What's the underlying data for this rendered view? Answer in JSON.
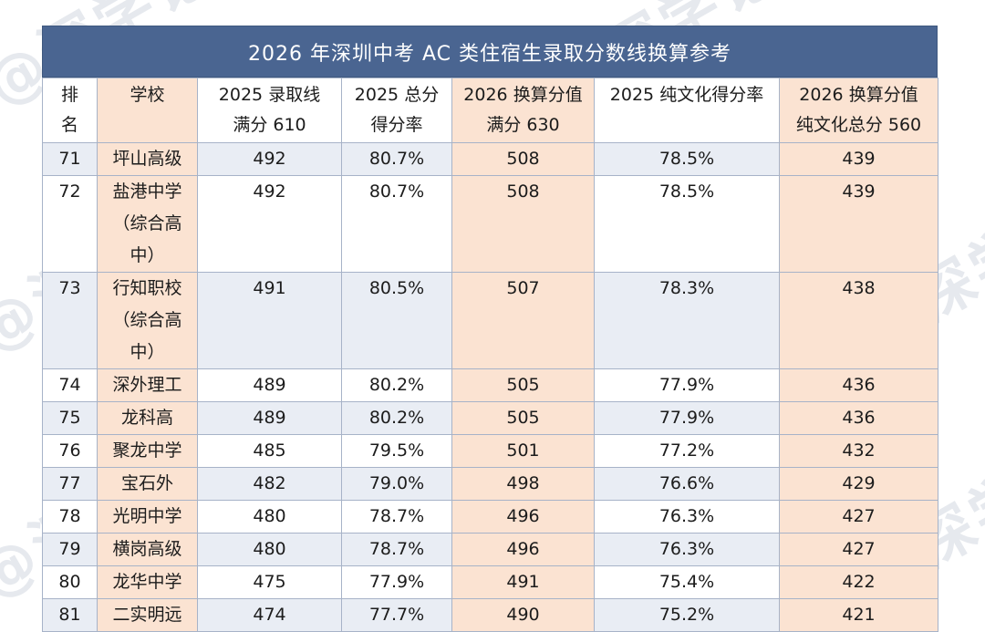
{
  "watermark": "@深学记",
  "title": "2026 年深圳中考 AC 类住宿生录取分数线换算参考",
  "headers": {
    "rank": "排\n名",
    "school": "学校",
    "score2025": "2025 录取线\n满分 610",
    "rate2025": "2025 总分\n得分率",
    "score2026": "2026 换算分值\n满分 630",
    "culture_rate2025": "2025 纯文化得分率",
    "culture2026": "2026 换算分值\n纯文化总分 560"
  },
  "rows": [
    {
      "rank": "71",
      "school": "坪山高级",
      "score2025": "492",
      "rate2025": "80.7%",
      "score2026": "508",
      "culture_rate2025": "78.5%",
      "culture2026": "439"
    },
    {
      "rank": "72",
      "school": "盐港中学（综合高中）",
      "score2025": "492",
      "rate2025": "80.7%",
      "score2026": "508",
      "culture_rate2025": "78.5%",
      "culture2026": "439"
    },
    {
      "rank": "73",
      "school": "行知职校（综合高中）",
      "score2025": "491",
      "rate2025": "80.5%",
      "score2026": "507",
      "culture_rate2025": "78.3%",
      "culture2026": "438"
    },
    {
      "rank": "74",
      "school": "深外理工",
      "score2025": "489",
      "rate2025": "80.2%",
      "score2026": "505",
      "culture_rate2025": "77.9%",
      "culture2026": "436"
    },
    {
      "rank": "75",
      "school": "龙科高",
      "score2025": "489",
      "rate2025": "80.2%",
      "score2026": "505",
      "culture_rate2025": "77.9%",
      "culture2026": "436"
    },
    {
      "rank": "76",
      "school": "聚龙中学",
      "score2025": "485",
      "rate2025": "79.5%",
      "score2026": "501",
      "culture_rate2025": "77.2%",
      "culture2026": "432"
    },
    {
      "rank": "77",
      "school": "宝石外",
      "score2025": "482",
      "rate2025": "79.0%",
      "score2026": "498",
      "culture_rate2025": "76.6%",
      "culture2026": "429"
    },
    {
      "rank": "78",
      "school": "光明中学",
      "score2025": "480",
      "rate2025": "78.7%",
      "score2026": "496",
      "culture_rate2025": "76.3%",
      "culture2026": "427"
    },
    {
      "rank": "79",
      "school": "横岗高级",
      "score2025": "480",
      "rate2025": "78.7%",
      "score2026": "496",
      "culture_rate2025": "76.3%",
      "culture2026": "427"
    },
    {
      "rank": "80",
      "school": "龙华中学",
      "score2025": "475",
      "rate2025": "77.9%",
      "score2026": "491",
      "culture_rate2025": "75.4%",
      "culture2026": "422"
    },
    {
      "rank": "81",
      "school": "二实明远",
      "score2025": "474",
      "rate2025": "77.7%",
      "score2026": "490",
      "culture_rate2025": "75.2%",
      "culture2026": "421"
    }
  ]
}
